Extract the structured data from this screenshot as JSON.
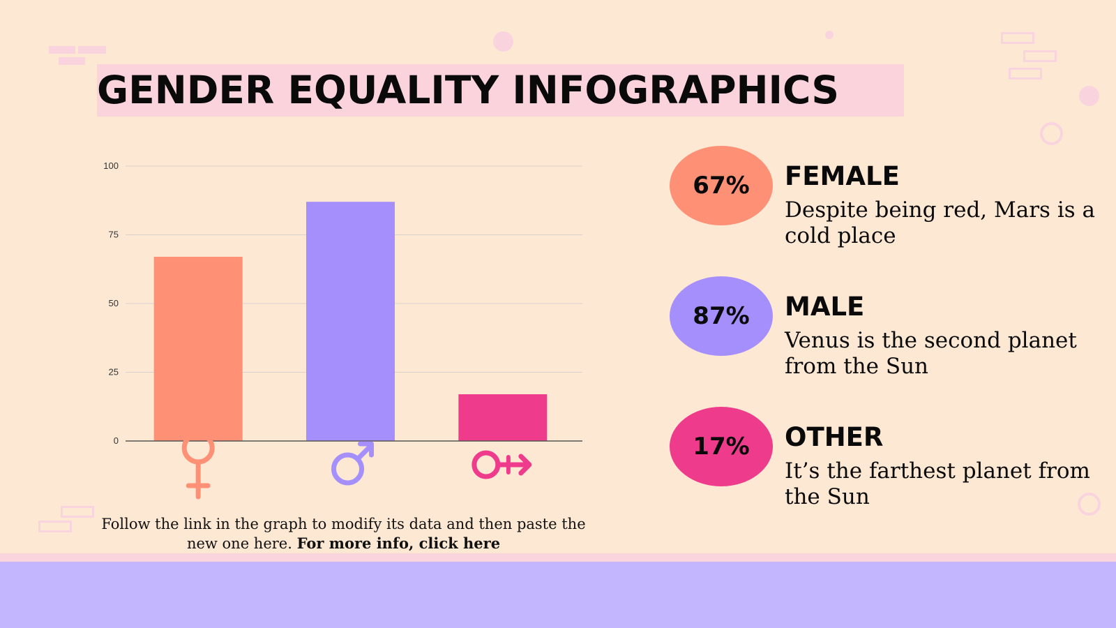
{
  "title": "GENDER EQUALITY INFOGRAPHICS",
  "colors": {
    "background": "#fde8d4",
    "female": "#fe9076",
    "male": "#a58ffd",
    "other": "#ef3b8b",
    "title_highlight": "#fbd3dd",
    "footer": "#c4b6fe"
  },
  "chart_data": {
    "type": "bar",
    "categories": [
      "female-symbol",
      "male-symbol",
      "other-symbol"
    ],
    "values": [
      67,
      87,
      17
    ],
    "colors": [
      "#fe9076",
      "#a58ffd",
      "#ef3b8b"
    ],
    "ylim": [
      0,
      100
    ],
    "yticks": [
      "0",
      "25",
      "50",
      "75",
      "100"
    ],
    "grid": true,
    "title": "",
    "xlabel": "",
    "ylabel": ""
  },
  "caption": {
    "text": "Follow the link in the graph to modify its data and then paste the new one here. ",
    "link": "For more info, click here"
  },
  "stats": [
    {
      "percent": "67%",
      "label": "FEMALE",
      "desc": "Despite being red, Mars is a cold place",
      "color": "#fe9076"
    },
    {
      "percent": "87%",
      "label": "MALE",
      "desc": "Venus is the second planet from the Sun",
      "color": "#a58ffd"
    },
    {
      "percent": "17%",
      "label": "OTHER",
      "desc": "It’s the farthest planet from the Sun",
      "color": "#ef3b8b"
    }
  ]
}
